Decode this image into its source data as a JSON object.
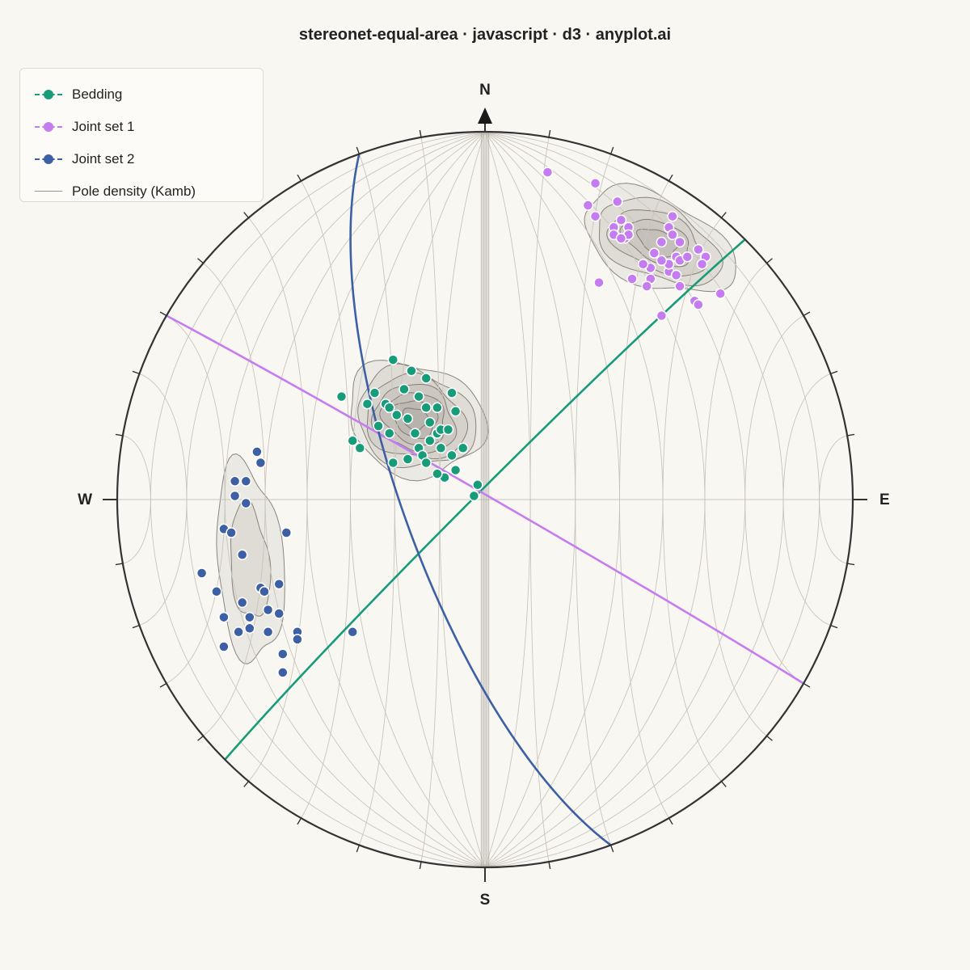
{
  "title": "stereonet-equal-area · javascript · d3 · anyplot.ai",
  "legend": [
    {
      "label": "Bedding",
      "color": "#179c7a",
      "kind": "marker"
    },
    {
      "label": "Joint set 1",
      "color": "#c57cf0",
      "kind": "marker"
    },
    {
      "label": "Joint set 2",
      "color": "#3d5fa3",
      "kind": "marker"
    },
    {
      "label": "Pole density (Kamb)",
      "color": "#9a968d",
      "kind": "line"
    }
  ],
  "chart_data": {
    "type": "scatter",
    "projection": "equal-area (Schmidt), lower hemisphere",
    "grid": true,
    "legend_position": "top-left",
    "cardinals": {
      "north": "N",
      "east": "E",
      "south": "S",
      "west": "W"
    },
    "great_circles": [
      {
        "set": "Bedding",
        "strike": 225,
        "dip": 88,
        "color": "#179c7a"
      },
      {
        "set": "Joint set 1",
        "strike": 300,
        "dip": 89,
        "color": "#c57cf0"
      },
      {
        "set": "Joint set 2",
        "strike": 160,
        "dip": 72,
        "color": "#3d5fa3"
      }
    ],
    "series": [
      {
        "name": "Bedding",
        "color": "#179c7a",
        "points": [
          [
            -0.25,
            0.38
          ],
          [
            -0.2,
            0.35
          ],
          [
            -0.22,
            0.3
          ],
          [
            -0.16,
            0.33
          ],
          [
            -0.18,
            0.28
          ],
          [
            -0.27,
            0.26
          ],
          [
            -0.3,
            0.29
          ],
          [
            -0.32,
            0.26
          ],
          [
            -0.29,
            0.2
          ],
          [
            -0.24,
            0.23
          ],
          [
            -0.21,
            0.22
          ],
          [
            -0.15,
            0.21
          ],
          [
            -0.13,
            0.25
          ],
          [
            -0.18,
            0.14
          ],
          [
            -0.19,
            0.18
          ],
          [
            -0.15,
            0.16
          ],
          [
            -0.17,
            0.12
          ],
          [
            -0.13,
            0.18
          ],
          [
            -0.08,
            0.24
          ],
          [
            -0.09,
            0.29
          ],
          [
            -0.16,
            0.25
          ],
          [
            -0.12,
            0.19
          ],
          [
            -0.1,
            0.19
          ],
          [
            -0.09,
            0.12
          ],
          [
            -0.12,
            0.14
          ],
          [
            -0.16,
            0.1
          ],
          [
            -0.21,
            0.11
          ],
          [
            -0.25,
            0.1
          ],
          [
            -0.26,
            0.18
          ],
          [
            -0.26,
            0.25
          ],
          [
            -0.34,
            0.14
          ],
          [
            -0.39,
            0.28
          ],
          [
            -0.36,
            0.16
          ],
          [
            -0.06,
            0.14
          ],
          [
            -0.08,
            0.08
          ],
          [
            -0.11,
            0.06
          ],
          [
            -0.13,
            0.07
          ],
          [
            -0.03,
            0.01
          ],
          [
            -0.02,
            0.04
          ]
        ]
      },
      {
        "name": "Joint set 1",
        "color": "#c57cf0",
        "points": [
          [
            0.17,
            0.89
          ],
          [
            0.3,
            0.86
          ],
          [
            0.36,
            0.81
          ],
          [
            0.28,
            0.8
          ],
          [
            0.3,
            0.77
          ],
          [
            0.37,
            0.76
          ],
          [
            0.35,
            0.74
          ],
          [
            0.39,
            0.74
          ],
          [
            0.35,
            0.72
          ],
          [
            0.38,
            0.71
          ],
          [
            0.51,
            0.77
          ],
          [
            0.5,
            0.74
          ],
          [
            0.51,
            0.72
          ],
          [
            0.53,
            0.7
          ],
          [
            0.48,
            0.7
          ],
          [
            0.46,
            0.67
          ],
          [
            0.52,
            0.66
          ],
          [
            0.45,
            0.63
          ],
          [
            0.5,
            0.62
          ],
          [
            0.53,
            0.65
          ],
          [
            0.5,
            0.64
          ],
          [
            0.55,
            0.66
          ],
          [
            0.58,
            0.68
          ],
          [
            0.6,
            0.66
          ],
          [
            0.59,
            0.64
          ],
          [
            0.48,
            0.65
          ],
          [
            0.43,
            0.64
          ],
          [
            0.52,
            0.61
          ],
          [
            0.45,
            0.6
          ],
          [
            0.44,
            0.58
          ],
          [
            0.4,
            0.6
          ],
          [
            0.31,
            0.59
          ],
          [
            0.57,
            0.54
          ],
          [
            0.58,
            0.53
          ],
          [
            0.64,
            0.56
          ],
          [
            0.48,
            0.5
          ],
          [
            0.39,
            0.72
          ],
          [
            0.37,
            0.71
          ],
          [
            0.53,
            0.58
          ]
        ]
      },
      {
        "name": "Joint set 2",
        "color": "#3d5fa3",
        "points": [
          [
            -0.62,
            0.13
          ],
          [
            -0.61,
            0.1
          ],
          [
            -0.65,
            0.05
          ],
          [
            -0.68,
            0.05
          ],
          [
            -0.68,
            0.01
          ],
          [
            -0.65,
            -0.01
          ],
          [
            -0.71,
            -0.08
          ],
          [
            -0.69,
            -0.09
          ],
          [
            -0.54,
            -0.09
          ],
          [
            -0.66,
            -0.15
          ],
          [
            -0.77,
            -0.2
          ],
          [
            -0.73,
            -0.25
          ],
          [
            -0.61,
            -0.24
          ],
          [
            -0.6,
            -0.25
          ],
          [
            -0.56,
            -0.23
          ],
          [
            -0.66,
            -0.28
          ],
          [
            -0.59,
            -0.3
          ],
          [
            -0.64,
            -0.32
          ],
          [
            -0.56,
            -0.31
          ],
          [
            -0.71,
            -0.32
          ],
          [
            -0.64,
            -0.35
          ],
          [
            -0.67,
            -0.36
          ],
          [
            -0.59,
            -0.36
          ],
          [
            -0.51,
            -0.36
          ],
          [
            -0.51,
            -0.38
          ],
          [
            -0.71,
            -0.4
          ],
          [
            -0.55,
            -0.42
          ],
          [
            -0.55,
            -0.47
          ],
          [
            -0.36,
            -0.36
          ]
        ]
      }
    ]
  }
}
